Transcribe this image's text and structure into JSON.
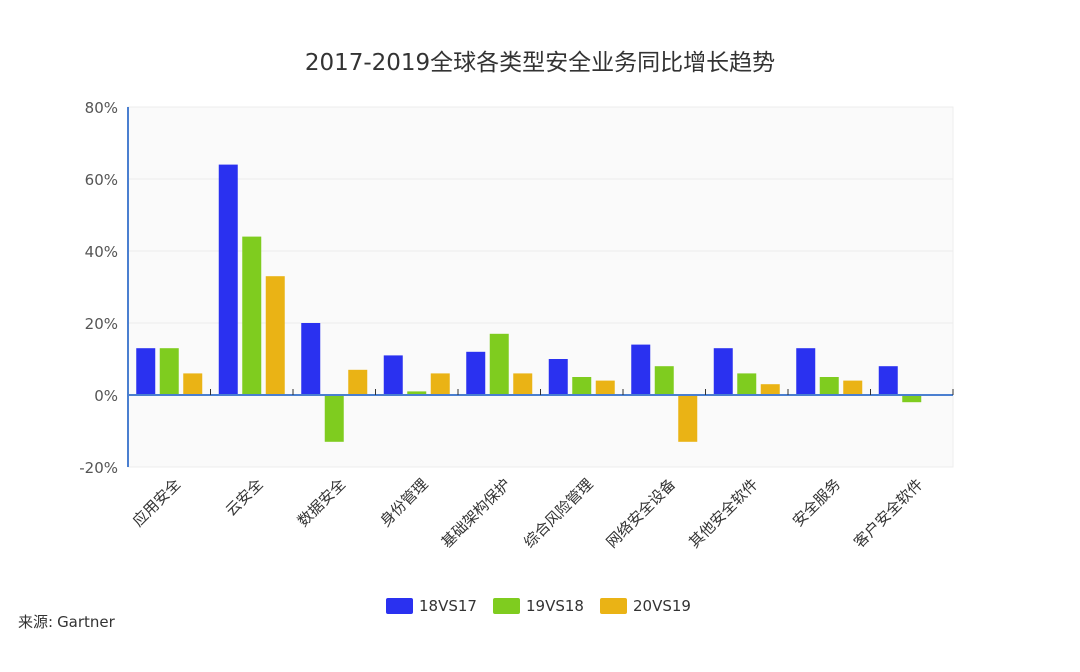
{
  "source": {
    "label": "来源:",
    "value": "Gartner"
  },
  "chart_data": {
    "type": "bar",
    "title": "2017-2019全球各类型安全业务同比增长趋势",
    "xlabel": "",
    "ylabel": "",
    "categories": [
      "应用安全",
      "云安全",
      "数据安全",
      "身份管理",
      "基础架构保护",
      "综合风险管理",
      "网络安全设备",
      "其他安全软件",
      "安全服务",
      "客户安全软件"
    ],
    "series": [
      {
        "name": "18VS17",
        "color": "#2a31f0",
        "values": [
          13,
          64,
          20,
          11,
          12,
          10,
          14,
          13,
          13,
          8
        ]
      },
      {
        "name": "19VS18",
        "color": "#7fcc1f",
        "values": [
          13,
          44,
          -13,
          1,
          17,
          5,
          8,
          6,
          5,
          -2
        ]
      },
      {
        "name": "20VS19",
        "color": "#eab315",
        "values": [
          6,
          33,
          7,
          6,
          6,
          4,
          -13,
          3,
          4,
          0
        ]
      }
    ],
    "ylim": [
      -20,
      80
    ],
    "yticks": [
      -20,
      0,
      20,
      40,
      60,
      80
    ],
    "ytick_suffix": "%",
    "grid": true,
    "legend_position": "bottom"
  }
}
